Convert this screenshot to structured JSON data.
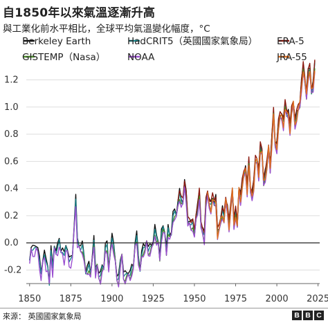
{
  "title": "自1850年以來氣溫逐漸升高",
  "subtitle": "與工業化前水平相比，全球平均氣溫變化幅度，°C",
  "source": "來源： 英國國家氣象局",
  "logo": [
    "B",
    "B",
    "C"
  ],
  "chart_data": {
    "type": "line",
    "xlim": [
      1848,
      2026
    ],
    "ylim": [
      -0.3,
      1.33
    ],
    "xticks": [
      1850,
      1875,
      1900,
      1925,
      1950,
      1975,
      2000,
      2025
    ],
    "yticks": [
      -0.2,
      0.0,
      0.2,
      0.4,
      0.6,
      0.8,
      1.0,
      1.2
    ],
    "ytick_labels": [
      "-0.2",
      "0.0",
      "0.2",
      "0.4",
      "0.6",
      "0.8",
      "1.0",
      "1.2"
    ],
    "grid": "horizontal",
    "zero_line": true,
    "legend_placement": "top",
    "series": [
      {
        "name": "Berkeley Earth",
        "color": "#111111",
        "start": 1850,
        "offset": 0.02
      },
      {
        "name": "HadCRIT5（英國國家氣象局）",
        "color": "#1a8a90",
        "start": 1850,
        "offset": 0.0
      },
      {
        "name": "ERA-5",
        "color": "#8b1a10",
        "start": 1940,
        "offset": 0.03
      },
      {
        "name": "GISTEMP（Nasa）",
        "color": "#4a8a2a",
        "start": 1880,
        "offset": -0.02
      },
      {
        "name": "NOAA",
        "color": "#9a4fd0",
        "start": 1850,
        "offset": -0.03
      },
      {
        "name": "JRA-55",
        "color": "#e07020",
        "start": 1958,
        "offset": -0.01
      }
    ],
    "anomaly_base": [
      [
        1850,
        -0.14
      ],
      [
        1851,
        -0.03
      ],
      [
        1852,
        -0.05
      ],
      [
        1853,
        -0.06
      ],
      [
        1854,
        -0.03
      ],
      [
        1855,
        -0.04
      ],
      [
        1856,
        -0.14
      ],
      [
        1857,
        -0.25
      ],
      [
        1858,
        -0.13
      ],
      [
        1859,
        -0.07
      ],
      [
        1860,
        -0.16
      ],
      [
        1861,
        -0.19
      ],
      [
        1862,
        -0.29
      ],
      [
        1863,
        -0.05
      ],
      [
        1864,
        -0.21
      ],
      [
        1865,
        -0.03
      ],
      [
        1866,
        -0.06
      ],
      [
        1867,
        -0.04
      ],
      [
        1868,
        0.0
      ],
      [
        1869,
        -0.06
      ],
      [
        1870,
        -0.05
      ],
      [
        1871,
        -0.11
      ],
      [
        1872,
        -0.04
      ],
      [
        1873,
        -0.05
      ],
      [
        1874,
        -0.13
      ],
      [
        1875,
        -0.14
      ],
      [
        1876,
        -0.1
      ],
      [
        1877,
        0.12
      ],
      [
        1878,
        0.32
      ],
      [
        1879,
        0.0
      ],
      [
        1880,
        -0.02
      ],
      [
        1881,
        -0.03
      ],
      [
        1882,
        -0.03
      ],
      [
        1883,
        -0.11
      ],
      [
        1884,
        -0.21
      ],
      [
        1885,
        -0.19
      ],
      [
        1886,
        -0.18
      ],
      [
        1887,
        -0.24
      ],
      [
        1888,
        -0.1
      ],
      [
        1889,
        0.02
      ],
      [
        1890,
        -0.22
      ],
      [
        1891,
        -0.16
      ],
      [
        1892,
        -0.23
      ],
      [
        1893,
        -0.25
      ],
      [
        1894,
        -0.19
      ],
      [
        1895,
        -0.18
      ],
      [
        1896,
        -0.02
      ],
      [
        1897,
        -0.03
      ],
      [
        1898,
        -0.2
      ],
      [
        1899,
        -0.05
      ],
      [
        1900,
        0.04
      ],
      [
        1901,
        -0.04
      ],
      [
        1902,
        -0.13
      ],
      [
        1903,
        -0.25
      ],
      [
        1904,
        -0.27
      ],
      [
        1905,
        -0.16
      ],
      [
        1906,
        -0.08
      ],
      [
        1907,
        -0.23
      ],
      [
        1908,
        -0.25
      ],
      [
        1909,
        -0.24
      ],
      [
        1910,
        -0.22
      ],
      [
        1911,
        -0.23
      ],
      [
        1912,
        -0.2
      ],
      [
        1913,
        -0.18
      ],
      [
        1914,
        0.0
      ],
      [
        1915,
        0.05
      ],
      [
        1916,
        -0.13
      ],
      [
        1917,
        -0.2
      ],
      [
        1918,
        -0.07
      ],
      [
        1919,
        -0.05
      ],
      [
        1920,
        -0.05
      ],
      [
        1921,
        0.02
      ],
      [
        1922,
        -0.05
      ],
      [
        1923,
        -0.05
      ],
      [
        1924,
        -0.03
      ],
      [
        1925,
        0.01
      ],
      [
        1926,
        0.1
      ],
      [
        1927,
        0.02
      ],
      [
        1928,
        0.01
      ],
      [
        1929,
        -0.1
      ],
      [
        1930,
        0.06
      ],
      [
        1931,
        0.1
      ],
      [
        1932,
        0.08
      ],
      [
        1933,
        -0.05
      ],
      [
        1934,
        0.09
      ],
      [
        1935,
        0.04
      ],
      [
        1936,
        0.08
      ],
      [
        1937,
        0.2
      ],
      [
        1938,
        0.21
      ],
      [
        1939,
        0.2
      ],
      [
        1940,
        0.3
      ],
      [
        1941,
        0.36
      ],
      [
        1942,
        0.29
      ],
      [
        1943,
        0.3
      ],
      [
        1944,
        0.45
      ],
      [
        1945,
        0.34
      ],
      [
        1946,
        0.14
      ],
      [
        1947,
        0.16
      ],
      [
        1948,
        0.14
      ],
      [
        1949,
        0.13
      ],
      [
        1950,
        0.05
      ],
      [
        1951,
        0.2
      ],
      [
        1952,
        0.26
      ],
      [
        1953,
        0.35
      ],
      [
        1954,
        0.12
      ],
      [
        1955,
        0.1
      ],
      [
        1956,
        0.04
      ],
      [
        1957,
        0.28
      ],
      [
        1958,
        0.36
      ],
      [
        1959,
        0.3
      ],
      [
        1960,
        0.26
      ],
      [
        1961,
        0.32
      ],
      [
        1962,
        0.3
      ],
      [
        1963,
        0.32
      ],
      [
        1964,
        0.06
      ],
      [
        1965,
        0.1
      ],
      [
        1966,
        0.18
      ],
      [
        1967,
        0.23
      ],
      [
        1968,
        0.17
      ],
      [
        1969,
        0.31
      ],
      [
        1970,
        0.26
      ],
      [
        1971,
        0.13
      ],
      [
        1972,
        0.24
      ],
      [
        1973,
        0.39
      ],
      [
        1974,
        0.15
      ],
      [
        1975,
        0.22
      ],
      [
        1976,
        0.12
      ],
      [
        1977,
        0.4
      ],
      [
        1978,
        0.33
      ],
      [
        1979,
        0.42
      ],
      [
        1980,
        0.5
      ],
      [
        1981,
        0.55
      ],
      [
        1982,
        0.39
      ],
      [
        1983,
        0.58
      ],
      [
        1984,
        0.39
      ],
      [
        1985,
        0.36
      ],
      [
        1986,
        0.42
      ],
      [
        1987,
        0.6
      ],
      [
        1988,
        0.61
      ],
      [
        1989,
        0.51
      ],
      [
        1990,
        0.69
      ],
      [
        1991,
        0.66
      ],
      [
        1992,
        0.46
      ],
      [
        1993,
        0.5
      ],
      [
        1994,
        0.56
      ],
      [
        1995,
        0.7
      ],
      [
        1996,
        0.56
      ],
      [
        1997,
        0.75
      ],
      [
        1998,
        0.95
      ],
      [
        1999,
        0.73
      ],
      [
        2000,
        0.71
      ],
      [
        2001,
        0.86
      ],
      [
        2002,
        0.93
      ],
      [
        2003,
        0.94
      ],
      [
        2004,
        0.88
      ],
      [
        2005,
        1.0
      ],
      [
        2006,
        0.95
      ],
      [
        2007,
        0.96
      ],
      [
        2008,
        0.84
      ],
      [
        2009,
        0.96
      ],
      [
        2010,
        1.03
      ],
      [
        2011,
        0.89
      ],
      [
        2012,
        0.93
      ],
      [
        2013,
        0.98
      ],
      [
        2014,
        1.03
      ],
      [
        2015,
        1.17
      ],
      [
        2016,
        1.28
      ],
      [
        2017,
        1.19
      ],
      [
        2018,
        1.1
      ],
      [
        2019,
        1.24
      ],
      [
        2020,
        1.27
      ],
      [
        2021,
        1.12
      ],
      [
        2022,
        1.16
      ],
      [
        2023,
        1.3
      ]
    ]
  }
}
